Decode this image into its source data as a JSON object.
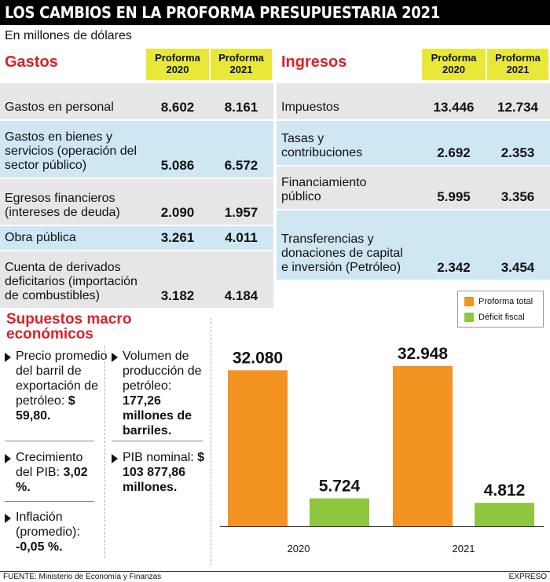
{
  "title": "LOS CAMBIOS EN LA PROFORMA PRESUPUESTARIA 2021",
  "unit": "En millones de dólares",
  "gastos": {
    "title": "Gastos",
    "col_a": "Proforma 2020",
    "col_b": "Proforma 2021",
    "rows": [
      {
        "label": "Gastos en personal",
        "v2020": "8.602",
        "v2021": "8.161"
      },
      {
        "label": "Gastos en bienes y servicios (operación del sector público)",
        "v2020": "5.086",
        "v2021": "6.572"
      },
      {
        "label": "Egresos financieros (intereses de deuda)",
        "v2020": "2.090",
        "v2021": "1.957"
      },
      {
        "label": "Obra pública",
        "v2020": "3.261",
        "v2021": "4.011"
      },
      {
        "label": "Cuenta de derivados deficitarios (importación de combustibles)",
        "v2020": "3.182",
        "v2021": "4.184"
      }
    ]
  },
  "ingresos": {
    "title": "Ingresos",
    "col_a": "Proforma 2020",
    "col_b": "Proforma 2021",
    "rows": [
      {
        "label": "Impuestos",
        "v2020": "13.446",
        "v2021": "12.734"
      },
      {
        "label": "Tasas y contribuciones",
        "v2020": "2.692",
        "v2021": "2.353"
      },
      {
        "label": "Financiamiento público",
        "v2020": "5.995",
        "v2021": "3.356"
      },
      {
        "label": "Transferencias y donaciones de capital e inversión (Petróleo)",
        "v2020": "2.342",
        "v2021": "3.454"
      }
    ]
  },
  "macro": {
    "title": "Supuestos macro económicos",
    "items": [
      {
        "text": "Precio promedio del barril de exportación de petróleo:",
        "value": "$ 59,80."
      },
      {
        "text": "Crecimiento del PIB:",
        "value": "3,02 %."
      },
      {
        "text": "Inflación (promedio):",
        "value": "-0,05 %."
      },
      {
        "text": "Volumen de producción de petróleo:",
        "value": "177,26 millones de barriles."
      },
      {
        "text": "PIB nominal:",
        "value": "$ 103 877,86 millones."
      }
    ]
  },
  "chart_data": {
    "type": "bar",
    "categories": [
      "2020",
      "2021"
    ],
    "series": [
      {
        "name": "Proforma total",
        "values": [
          32080,
          32948
        ],
        "labels": [
          "32.080",
          "32.948"
        ],
        "color": "#f39322"
      },
      {
        "name": "Déficit fiscal",
        "values": [
          5724,
          4812
        ],
        "labels": [
          "5.724",
          "4.812"
        ],
        "color": "#8dc63f"
      }
    ],
    "ylim": [
      0,
      36500
    ]
  },
  "footer": {
    "source": "FUENTE: Ministerio de Economía y Finanzas",
    "brand": "EXPRESO"
  }
}
